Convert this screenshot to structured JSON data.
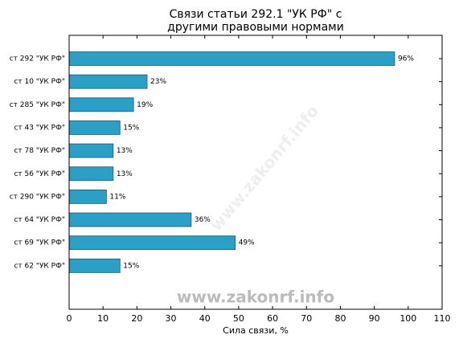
{
  "chart_data": {
    "type": "barh",
    "title": [
      "Связи статьи 292.1 \"УК РФ\" с",
      "другими правовыми нормами"
    ],
    "xlabel": "Сила связи, %",
    "watermark": "www.zakonrf.info",
    "categories": [
      "ст 292 \"УК РФ\"",
      "ст 10 \"УК РФ\"",
      "ст 285 \"УК РФ\"",
      "ст 43 \"УК РФ\"",
      "ст 78 \"УК РФ\"",
      "ст 56 \"УК РФ\"",
      "ст 290 \"УК РФ\"",
      "ст 64 \"УК РФ\"",
      "ст 69 \"УК РФ\"",
      "ст 62 \"УК РФ\""
    ],
    "values": [
      96,
      23,
      19,
      15,
      13,
      13,
      11,
      36,
      49,
      15
    ],
    "value_labels": [
      "96%",
      "23%",
      "19%",
      "15%",
      "13%",
      "13%",
      "11%",
      "36%",
      "49%",
      "15%"
    ],
    "color": "#2b9fc5",
    "xlim": [
      0,
      110
    ],
    "xticks": [
      0,
      10,
      20,
      30,
      40,
      50,
      60,
      70,
      80,
      90,
      100,
      110
    ]
  }
}
